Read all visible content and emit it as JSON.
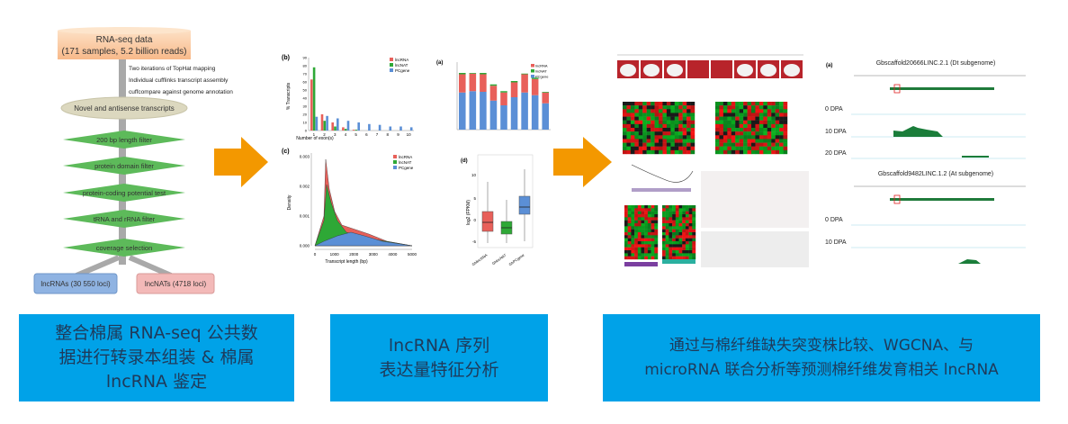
{
  "flowchart": {
    "source_title": "RNA-seq data",
    "source_subtitle": "(171 samples, 5.2 billion reads)",
    "steps_annotations": [
      "Two iterations of TopHat mapping",
      "Individual cufflinks transcript assembly",
      "cuffcompare against genome annotation"
    ],
    "novel": "Novel and antisense transcripts",
    "filters": [
      "200 bp length filter",
      "protein domain filter",
      "protein-coding potential test",
      "tRNA and rRNA filter",
      "coverage selection"
    ],
    "outputs": [
      "lncRNAs (30 550 loci)",
      "lncNATs (4718 loci)"
    ]
  },
  "colors": {
    "arrow": "#f39800",
    "box": "#00a2e8",
    "lncRNA": "#e8605a",
    "lncNAT": "#2ea836",
    "PCgene": "#5b8fd6",
    "filter": "#5dba5a"
  },
  "charts": {
    "b": {
      "label": "(b)",
      "type": "bar",
      "xlabel": "Number of exon(s)",
      "ylabel": "% Transcripts",
      "categories": [
        "1",
        "2",
        "3",
        "4",
        "5",
        "6",
        "7",
        "8",
        "9",
        "10"
      ],
      "yticks": [
        "0",
        "10",
        "20",
        "30",
        "40",
        "50",
        "60",
        "70",
        "80",
        "90"
      ],
      "ylim": [
        0,
        90
      ],
      "legend": [
        "lncRNA",
        "lncNAT",
        "PCgene"
      ],
      "series": [
        {
          "name": "lncRNA",
          "values": [
            63,
            20,
            10,
            4,
            1,
            0,
            0,
            0,
            0,
            0
          ]
        },
        {
          "name": "lncNAT",
          "values": [
            78,
            12,
            5,
            2,
            1,
            0,
            0,
            0,
            0,
            0
          ]
        },
        {
          "name": "PCgene",
          "values": [
            17,
            18,
            15,
            12,
            10,
            8,
            7,
            5,
            5,
            4
          ]
        }
      ]
    },
    "c": {
      "label": "(c)",
      "type": "area",
      "xlabel": "Transcript length (bp)",
      "ylabel": "Density",
      "xticks": [
        "0",
        "1000",
        "2000",
        "3000",
        "4000",
        "5000"
      ],
      "yticks": [
        "0.000",
        "0.001",
        "0.002",
        "0.003"
      ],
      "legend": [
        "lncRNA",
        "lncNAT",
        "PCgene"
      ]
    },
    "stacked": {
      "type": "bar",
      "legend": [
        "lncRNA",
        "lncNAT",
        "PCgene"
      ],
      "series": [
        {
          "name": "PCgene",
          "values": [
            55,
            57,
            56,
            43,
            36,
            48,
            55,
            51,
            39
          ]
        },
        {
          "name": "lncRNA",
          "values": [
            27,
            26,
            26,
            22,
            19,
            22,
            27,
            24,
            16
          ]
        },
        {
          "name": "lncNAT",
          "values": [
            2,
            1,
            2,
            2,
            2,
            2,
            1,
            2,
            1
          ]
        }
      ]
    },
    "d": {
      "label": "(d)",
      "type": "box",
      "ylabel": "log2 (FPKM)",
      "yticks": [
        "-5",
        "0",
        "5",
        "10"
      ],
      "categories": [
        "GhlincRNA",
        "GhlncNAT",
        "GhPCgene"
      ]
    }
  },
  "tracks": {
    "label": "(a)",
    "gene1": "Gbscaffold20666LINC.2.1 (Dt subgenome)",
    "gene2": "Gbscaffold9482LINC.1.2 (At subgenome)",
    "stages": [
      "0 DPA",
      "10 DPA",
      "20 DPA"
    ]
  },
  "boxes": [
    {
      "lines": [
        "整合棉属 RNA-seq 公共数",
        "据进行转录本组装 & 棉属",
        "lncRNA 鉴定"
      ]
    },
    {
      "lines": [
        "lncRNA 序列",
        "表达量特征分析"
      ]
    },
    {
      "lines": [
        "通过与棉纤维缺失突变株比较、WGCNA、与",
        "microRNA 联合分析等预测棉纤维发育相关 lncRNA"
      ]
    }
  ]
}
